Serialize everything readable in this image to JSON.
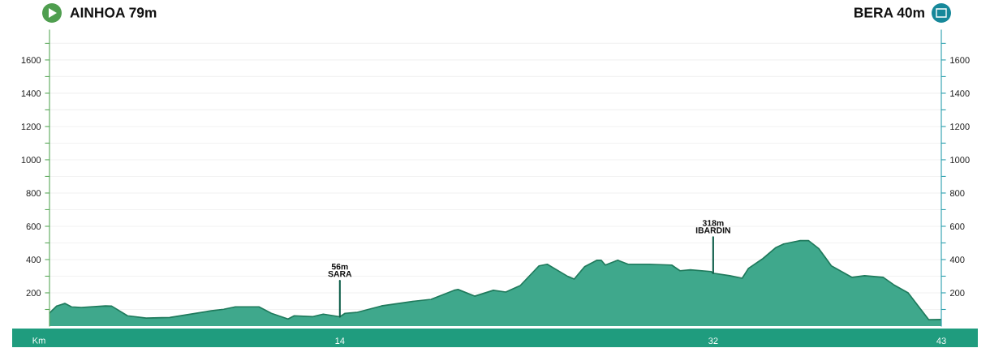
{
  "chart_data": {
    "type": "area",
    "xlabel": "Km",
    "x": [
      0,
      0.35,
      0.74,
      1.06,
      1.53,
      2.7,
      3.0,
      3.76,
      4.66,
      5.8,
      7.8,
      8.4,
      8.96,
      10.1,
      10.7,
      11.5,
      11.8,
      12.7,
      13.2,
      13.7,
      14,
      14.25,
      14.8,
      16.0,
      17.6,
      18.4,
      19.5,
      19.7,
      20.5,
      21.4,
      22.0,
      22.7,
      23.6,
      24.0,
      25.0,
      25.3,
      25.8,
      26.4,
      26.6,
      26.8,
      27.4,
      27.9,
      28.9,
      30.0,
      30.4,
      30.9,
      31.9,
      32,
      32.8,
      33.4,
      33.7,
      34.4,
      35.0,
      35.4,
      36.2,
      36.6,
      37.1,
      37.7,
      38.7,
      39.3,
      40.2,
      40.7,
      41.4,
      42.0,
      42.4,
      43
    ],
    "series": [
      {
        "color": "#3fa88c",
        "values": [
          79,
          121,
          136,
          116,
          112,
          121,
          120,
          62,
          48,
          52,
          92,
          101,
          116,
          116,
          77,
          43,
          62,
          57,
          72,
          62,
          56,
          77,
          82,
          121,
          150,
          161,
          215,
          220,
          180,
          215,
          205,
          244,
          362,
          372,
          298,
          283,
          357,
          396,
          396,
          367,
          396,
          372,
          372,
          367,
          333,
          338,
          328,
          318,
          303,
          288,
          347,
          406,
          470,
          494,
          514,
          514,
          465,
          362,
          293,
          303,
          293,
          249,
          200,
          102,
          38,
          40
        ]
      }
    ],
    "xlim": [
      0,
      43
    ],
    "xticks": [
      14,
      32,
      43
    ],
    "ylim": [
      0,
      1780
    ],
    "yticks": [
      {
        "value": 100,
        "label": null
      },
      200,
      {
        "value": 300,
        "label": null
      },
      400,
      {
        "value": 500,
        "label": null
      },
      600,
      {
        "value": 700,
        "label": null
      },
      800,
      {
        "value": 900,
        "label": null
      },
      1000,
      {
        "value": 1100,
        "label": null
      },
      1200,
      {
        "value": 1300,
        "label": null
      },
      1400,
      {
        "value": 1500,
        "label": null
      },
      1600,
      {
        "value": 1700,
        "label": null
      }
    ],
    "y2lim": [
      0,
      1780
    ],
    "y2ticks": [
      {
        "value": 100,
        "label": null
      },
      200,
      {
        "value": 300,
        "label": null
      },
      400,
      {
        "value": 500,
        "label": null
      },
      600,
      {
        "value": 700,
        "label": null
      },
      800,
      {
        "value": 900,
        "label": null
      },
      1000,
      {
        "value": 1100,
        "label": null
      },
      1200,
      {
        "value": 1300,
        "label": null
      },
      1400,
      {
        "value": 1500,
        "label": null
      },
      1600,
      {
        "value": 1700,
        "label": null
      }
    ],
    "grid": "y",
    "annotations": [
      "AINHOA 79m",
      "BERA 40m",
      {
        "text": "56m\nSARA",
        "x": 14,
        "y": 56
      },
      {
        "text": "318m\nIBARDIN",
        "x": 32,
        "y": 318
      }
    ]
  }
}
